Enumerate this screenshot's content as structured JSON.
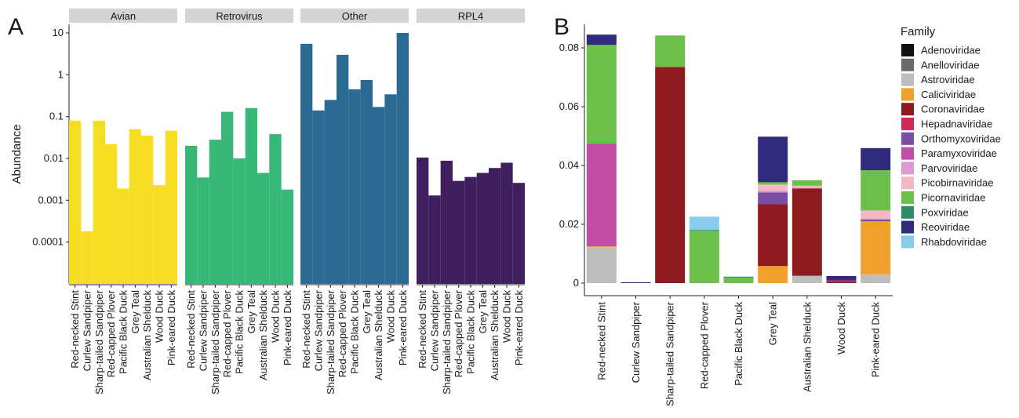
{
  "chart_data": [
    {
      "panel": "A",
      "type": "bar",
      "ylabel": "Abundance",
      "yscale": "log",
      "ylim": [
        1e-05,
        10
      ],
      "yticks": [
        10,
        1,
        0.1,
        0.01,
        0.001,
        0.0001
      ],
      "ytick_labels": [
        "10",
        "1",
        "0.1",
        "0.01",
        "0.001",
        "0.0001"
      ],
      "categories": [
        "Red-necked Stint",
        "Curlew Sandpiper",
        "Sharp-tailed Sandpiper",
        "Red-capped Plover",
        "Pacific Black Duck",
        "Grey Teal",
        "Australian Shelduck",
        "Wood Duck",
        "Pink-eared Duck"
      ],
      "facets": [
        {
          "name": "Avian",
          "color": "#f5dd23",
          "values": [
            0.08,
            0.00018,
            0.08,
            0.022,
            0.0019,
            0.05,
            0.035,
            0.0023,
            0.046
          ]
        },
        {
          "name": "Retrovirus",
          "color": "#36b877",
          "values": [
            0.02,
            0.0035,
            0.028,
            0.13,
            0.01,
            0.16,
            0.0045,
            0.038,
            0.0018
          ]
        },
        {
          "name": "Other",
          "color": "#2b6a92",
          "values": [
            5.5,
            0.14,
            0.25,
            3.0,
            0.45,
            0.75,
            0.17,
            0.34,
            10.0
          ]
        },
        {
          "name": "RPL4",
          "color": "#3f1f5e",
          "values": [
            0.0105,
            0.0013,
            0.0088,
            0.0029,
            0.0036,
            0.0045,
            0.0059,
            0.0079,
            0.0026
          ]
        }
      ]
    },
    {
      "panel": "B",
      "type": "bar",
      "stacked": true,
      "ylim": [
        0,
        0.088
      ],
      "yticks": [
        0,
        0.02,
        0.04,
        0.06,
        0.08
      ],
      "ytick_labels": [
        "0",
        "0.02",
        "0.04",
        "0.06",
        "0.08"
      ],
      "categories": [
        "Red-necked Stint",
        "Curlew Sandpiper",
        "Sharp-tailed Sandpiper",
        "Red-capped Plover",
        "Pacific Black Duck",
        "Grey Teal",
        "Australian Shelduck",
        "Wood Duck",
        "Pink-eared Duck"
      ],
      "legend_title": "Family",
      "legend_position": "right",
      "series": [
        {
          "name": "Adenoviridae",
          "color": "#111111",
          "values": [
            0,
            0,
            0,
            0,
            0,
            0,
            0,
            0,
            0
          ]
        },
        {
          "name": "Anelloviridae",
          "color": "#6b6b6b",
          "values": [
            0,
            0,
            0,
            0,
            0,
            0,
            0,
            0,
            0
          ]
        },
        {
          "name": "Astroviridae",
          "color": "#bdbdbd",
          "values": [
            0.0122,
            0,
            0,
            0,
            0,
            0,
            0.0025,
            0,
            0.003
          ]
        },
        {
          "name": "Caliciviridae",
          "color": "#f0a12c",
          "values": [
            0.0003,
            0,
            0,
            0,
            0,
            0.0058,
            0,
            0,
            0.018
          ]
        },
        {
          "name": "Coronaviridae",
          "color": "#8e1b1e",
          "values": [
            0,
            0,
            0.0735,
            0,
            0,
            0.021,
            0.0297,
            0.0005,
            0
          ]
        },
        {
          "name": "Hepadnaviridae",
          "color": "#cf2a57",
          "values": [
            0,
            0,
            0,
            0,
            0,
            0,
            0,
            0.0004,
            0
          ]
        },
        {
          "name": "Orthomyxoviridae",
          "color": "#7a4fa3",
          "values": [
            0,
            0,
            0,
            0,
            0,
            0.004,
            0,
            0,
            0.0007
          ]
        },
        {
          "name": "Paramyxoviridae",
          "color": "#c24ea6",
          "values": [
            0.035,
            0,
            0,
            0,
            0,
            0,
            0,
            0,
            0
          ]
        },
        {
          "name": "Parvoviridae",
          "color": "#dc9ad2",
          "values": [
            0,
            0,
            0,
            0,
            0,
            0.0007,
            0.0003,
            0,
            0
          ]
        },
        {
          "name": "Picobirnaviridae",
          "color": "#f4b7c6",
          "values": [
            0,
            0,
            0,
            0,
            0,
            0.002,
            0.0006,
            0,
            0.003
          ]
        },
        {
          "name": "Picornaviridae",
          "color": "#6cc04a",
          "values": [
            0.0335,
            0,
            0.0107,
            0.0178,
            0.0019,
            0.0008,
            0.0019,
            0,
            0.0137
          ]
        },
        {
          "name": "Poxviridae",
          "color": "#2f8a6e",
          "values": [
            0,
            0,
            0,
            0.0003,
            0.0003,
            0,
            0,
            0,
            0
          ]
        },
        {
          "name": "Reoviridae",
          "color": "#2f2c7d",
          "values": [
            0.0035,
            0.0003,
            0,
            0,
            0,
            0.0155,
            0,
            0.0015,
            0.0075
          ]
        },
        {
          "name": "Rhabdoviridae",
          "color": "#87ccea",
          "values": [
            0,
            0,
            0,
            0.0045,
            0,
            0,
            0,
            0,
            0
          ]
        }
      ]
    }
  ]
}
